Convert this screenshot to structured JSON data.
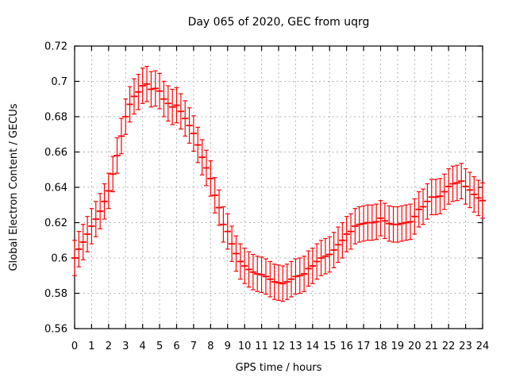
{
  "title": "Day 065 of 2020, GEC from uqrg",
  "chart_data": {
    "type": "line",
    "style": "yerrorbars",
    "title": "Day 065 of 2020, GEC from uqrg",
    "xlabel": "GPS time / hours",
    "ylabel": "Global Electron Content / GECUs",
    "xlim": [
      0,
      24
    ],
    "ylim": [
      0.56,
      0.72
    ],
    "grid": true,
    "legend": "none",
    "series_name": "GEC from uqrg",
    "series_color": "#ff0000",
    "xtick_labels": [
      "0",
      "1",
      "2",
      "3",
      "4",
      "5",
      "6",
      "7",
      "8",
      "9",
      "10",
      "11",
      "12",
      "13",
      "14",
      "15",
      "16",
      "17",
      "18",
      "19",
      "20",
      "21",
      "22",
      "23",
      "24"
    ],
    "ytick_labels": [
      "0.56",
      "0.58",
      "0.6",
      "0.62",
      "0.64",
      "0.66",
      "0.68",
      "0.7",
      "0.72"
    ],
    "x": [
      0,
      0.25,
      0.5,
      0.75,
      1,
      1.25,
      1.5,
      1.75,
      2,
      2.25,
      2.5,
      2.75,
      3,
      3.25,
      3.5,
      3.75,
      4,
      4.25,
      4.5,
      4.75,
      5,
      5.25,
      5.5,
      5.75,
      6,
      6.25,
      6.5,
      6.75,
      7,
      7.25,
      7.5,
      7.75,
      8,
      8.25,
      8.5,
      8.75,
      9,
      9.25,
      9.5,
      9.75,
      10,
      10.25,
      10.5,
      10.75,
      11,
      11.25,
      11.5,
      11.75,
      12,
      12.25,
      12.5,
      12.75,
      13,
      13.25,
      13.5,
      13.75,
      14,
      14.25,
      14.5,
      14.75,
      15,
      15.25,
      15.5,
      15.75,
      16,
      16.25,
      16.5,
      16.75,
      17,
      17.25,
      17.5,
      17.75,
      18,
      18.25,
      18.5,
      18.75,
      19,
      19.25,
      19.5,
      19.75,
      20,
      20.25,
      20.5,
      20.75,
      21,
      21.25,
      21.5,
      21.75,
      22,
      22.25,
      22.5,
      22.75,
      23,
      23.25,
      23.5,
      23.75,
      24
    ],
    "y": [
      0.6,
      0.605,
      0.609,
      0.6135,
      0.618,
      0.622,
      0.6265,
      0.632,
      0.638,
      0.6475,
      0.658,
      0.669,
      0.68,
      0.687,
      0.6915,
      0.694,
      0.6975,
      0.6985,
      0.6955,
      0.696,
      0.6945,
      0.69,
      0.6875,
      0.6855,
      0.6865,
      0.683,
      0.679,
      0.675,
      0.6705,
      0.664,
      0.657,
      0.651,
      0.645,
      0.6355,
      0.6285,
      0.619,
      0.615,
      0.608,
      0.6025,
      0.598,
      0.5955,
      0.5935,
      0.592,
      0.591,
      0.5905,
      0.5895,
      0.588,
      0.5865,
      0.586,
      0.5855,
      0.5865,
      0.588,
      0.5895,
      0.59,
      0.591,
      0.594,
      0.5955,
      0.598,
      0.6,
      0.601,
      0.602,
      0.6045,
      0.6075,
      0.61,
      0.6135,
      0.615,
      0.618,
      0.619,
      0.6195,
      0.62,
      0.62,
      0.6205,
      0.6225,
      0.621,
      0.6195,
      0.619,
      0.619,
      0.6195,
      0.62,
      0.6205,
      0.6235,
      0.6275,
      0.629,
      0.632,
      0.6345,
      0.6345,
      0.635,
      0.6375,
      0.6405,
      0.642,
      0.6425,
      0.6435,
      0.6405,
      0.6385,
      0.636,
      0.634,
      0.6325
    ],
    "yerr": 0.01
  },
  "colors": {
    "background": "#ffffff",
    "axis": "#000000",
    "grid": "#b0b0b0",
    "series": "#ff0000"
  }
}
